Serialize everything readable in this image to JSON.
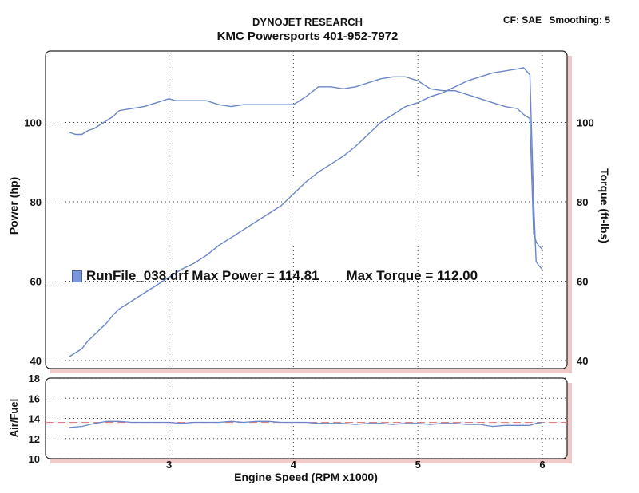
{
  "header": {
    "title": "DYNOJET RESEARCH",
    "subtitle": "KMC Powersports 401-952-7972",
    "correction": "CF: SAE",
    "smoothing": "Smoothing: 5"
  },
  "legend": {
    "run_label": "RunFile_038.drf Max Power = 114.81",
    "max_torque_label": "Max Torque = 112.00",
    "color": "#7b97dc"
  },
  "chart_data": [
    {
      "type": "line",
      "title": "DYNOJET RESEARCH",
      "xlabel": "",
      "ylabel": "Power (hp)",
      "y2label": "Torque (ft-lbs)",
      "xlim": [
        2.2,
        6.0
      ],
      "ylim": [
        40,
        118
      ],
      "y2lim": [
        40,
        118
      ],
      "xticks": [
        3,
        4,
        5,
        6
      ],
      "yticks": [
        40,
        60,
        80,
        100
      ],
      "y2ticks": [
        40,
        60,
        80,
        100
      ],
      "grid": true,
      "line_color": "#6a86c8",
      "series": [
        {
          "name": "",
          "label": "power",
          "x": [
            2.2,
            2.25,
            2.3,
            2.35,
            2.4,
            2.45,
            2.5,
            2.55,
            2.6,
            2.7,
            2.8,
            2.9,
            3.0,
            3.1,
            3.2,
            3.3,
            3.4,
            3.5,
            3.6,
            3.7,
            3.8,
            3.9,
            4.0,
            4.1,
            4.2,
            4.3,
            4.4,
            4.5,
            4.6,
            4.7,
            4.8,
            4.9,
            5.0,
            5.1,
            5.2,
            5.3,
            5.4,
            5.5,
            5.6,
            5.7,
            5.8,
            5.85,
            5.9,
            5.93,
            5.95,
            5.97,
            6.0
          ],
          "y": [
            41,
            42,
            43,
            45,
            46.5,
            48,
            49.5,
            51.5,
            53,
            55,
            57,
            59,
            61,
            63,
            64.5,
            66.5,
            69,
            71,
            73,
            75,
            77,
            79,
            82,
            85,
            87.5,
            89.5,
            91.5,
            94,
            97,
            100,
            102,
            104,
            105,
            106.5,
            107.5,
            109,
            110.5,
            111.5,
            112.5,
            113,
            113.5,
            113.8,
            112,
            80,
            65,
            64,
            63
          ]
        },
        {
          "name": "",
          "label": "torque",
          "x": [
            2.2,
            2.25,
            2.3,
            2.35,
            2.4,
            2.45,
            2.5,
            2.55,
            2.6,
            2.7,
            2.8,
            2.9,
            3.0,
            3.05,
            3.1,
            3.2,
            3.3,
            3.4,
            3.5,
            3.6,
            3.7,
            3.8,
            3.9,
            4.0,
            4.1,
            4.2,
            4.3,
            4.4,
            4.5,
            4.6,
            4.7,
            4.8,
            4.9,
            5.0,
            5.1,
            5.2,
            5.3,
            5.4,
            5.5,
            5.6,
            5.7,
            5.8,
            5.85,
            5.9,
            5.93,
            5.95,
            5.97,
            6.0
          ],
          "y": [
            97.5,
            97,
            97,
            98,
            98.5,
            99.5,
            100.5,
            101.5,
            103,
            103.5,
            104,
            105,
            106,
            105.5,
            105.5,
            105.5,
            105.5,
            104.5,
            104,
            104.5,
            104.5,
            104.5,
            104.5,
            104.5,
            106.5,
            109,
            109,
            108.5,
            109,
            110,
            111,
            111.5,
            111.5,
            110.5,
            108.5,
            108,
            108,
            107,
            106,
            105,
            104,
            103.5,
            102,
            101,
            72,
            70,
            69,
            68
          ]
        }
      ]
    },
    {
      "type": "line",
      "xlabel": "Engine Speed (RPM x1000)",
      "ylabel": "Air/Fuel",
      "xlim": [
        2.2,
        6.0
      ],
      "ylim": [
        10,
        18
      ],
      "xticks": [
        3,
        4,
        5,
        6
      ],
      "yticks": [
        10,
        12,
        14,
        16,
        18
      ],
      "grid": true,
      "reference_line": 13.6,
      "reference_color": "#e08080",
      "line_color": "#6a86c8",
      "series": [
        {
          "name": "",
          "label": "afr",
          "x": [
            2.2,
            2.3,
            2.4,
            2.5,
            2.6,
            2.7,
            2.8,
            2.9,
            3.0,
            3.1,
            3.2,
            3.3,
            3.4,
            3.5,
            3.6,
            3.7,
            3.8,
            3.9,
            4.0,
            4.1,
            4.2,
            4.3,
            4.4,
            4.5,
            4.6,
            4.7,
            4.8,
            4.9,
            5.0,
            5.1,
            5.2,
            5.3,
            5.4,
            5.5,
            5.6,
            5.7,
            5.8,
            5.9,
            5.95,
            6.0
          ],
          "y": [
            13.1,
            13.2,
            13.5,
            13.7,
            13.7,
            13.6,
            13.6,
            13.6,
            13.6,
            13.5,
            13.6,
            13.6,
            13.6,
            13.7,
            13.6,
            13.7,
            13.7,
            13.6,
            13.6,
            13.6,
            13.5,
            13.5,
            13.5,
            13.4,
            13.5,
            13.5,
            13.4,
            13.5,
            13.5,
            13.4,
            13.5,
            13.5,
            13.4,
            13.4,
            13.2,
            13.3,
            13.3,
            13.3,
            13.5,
            13.6
          ]
        }
      ]
    }
  ]
}
